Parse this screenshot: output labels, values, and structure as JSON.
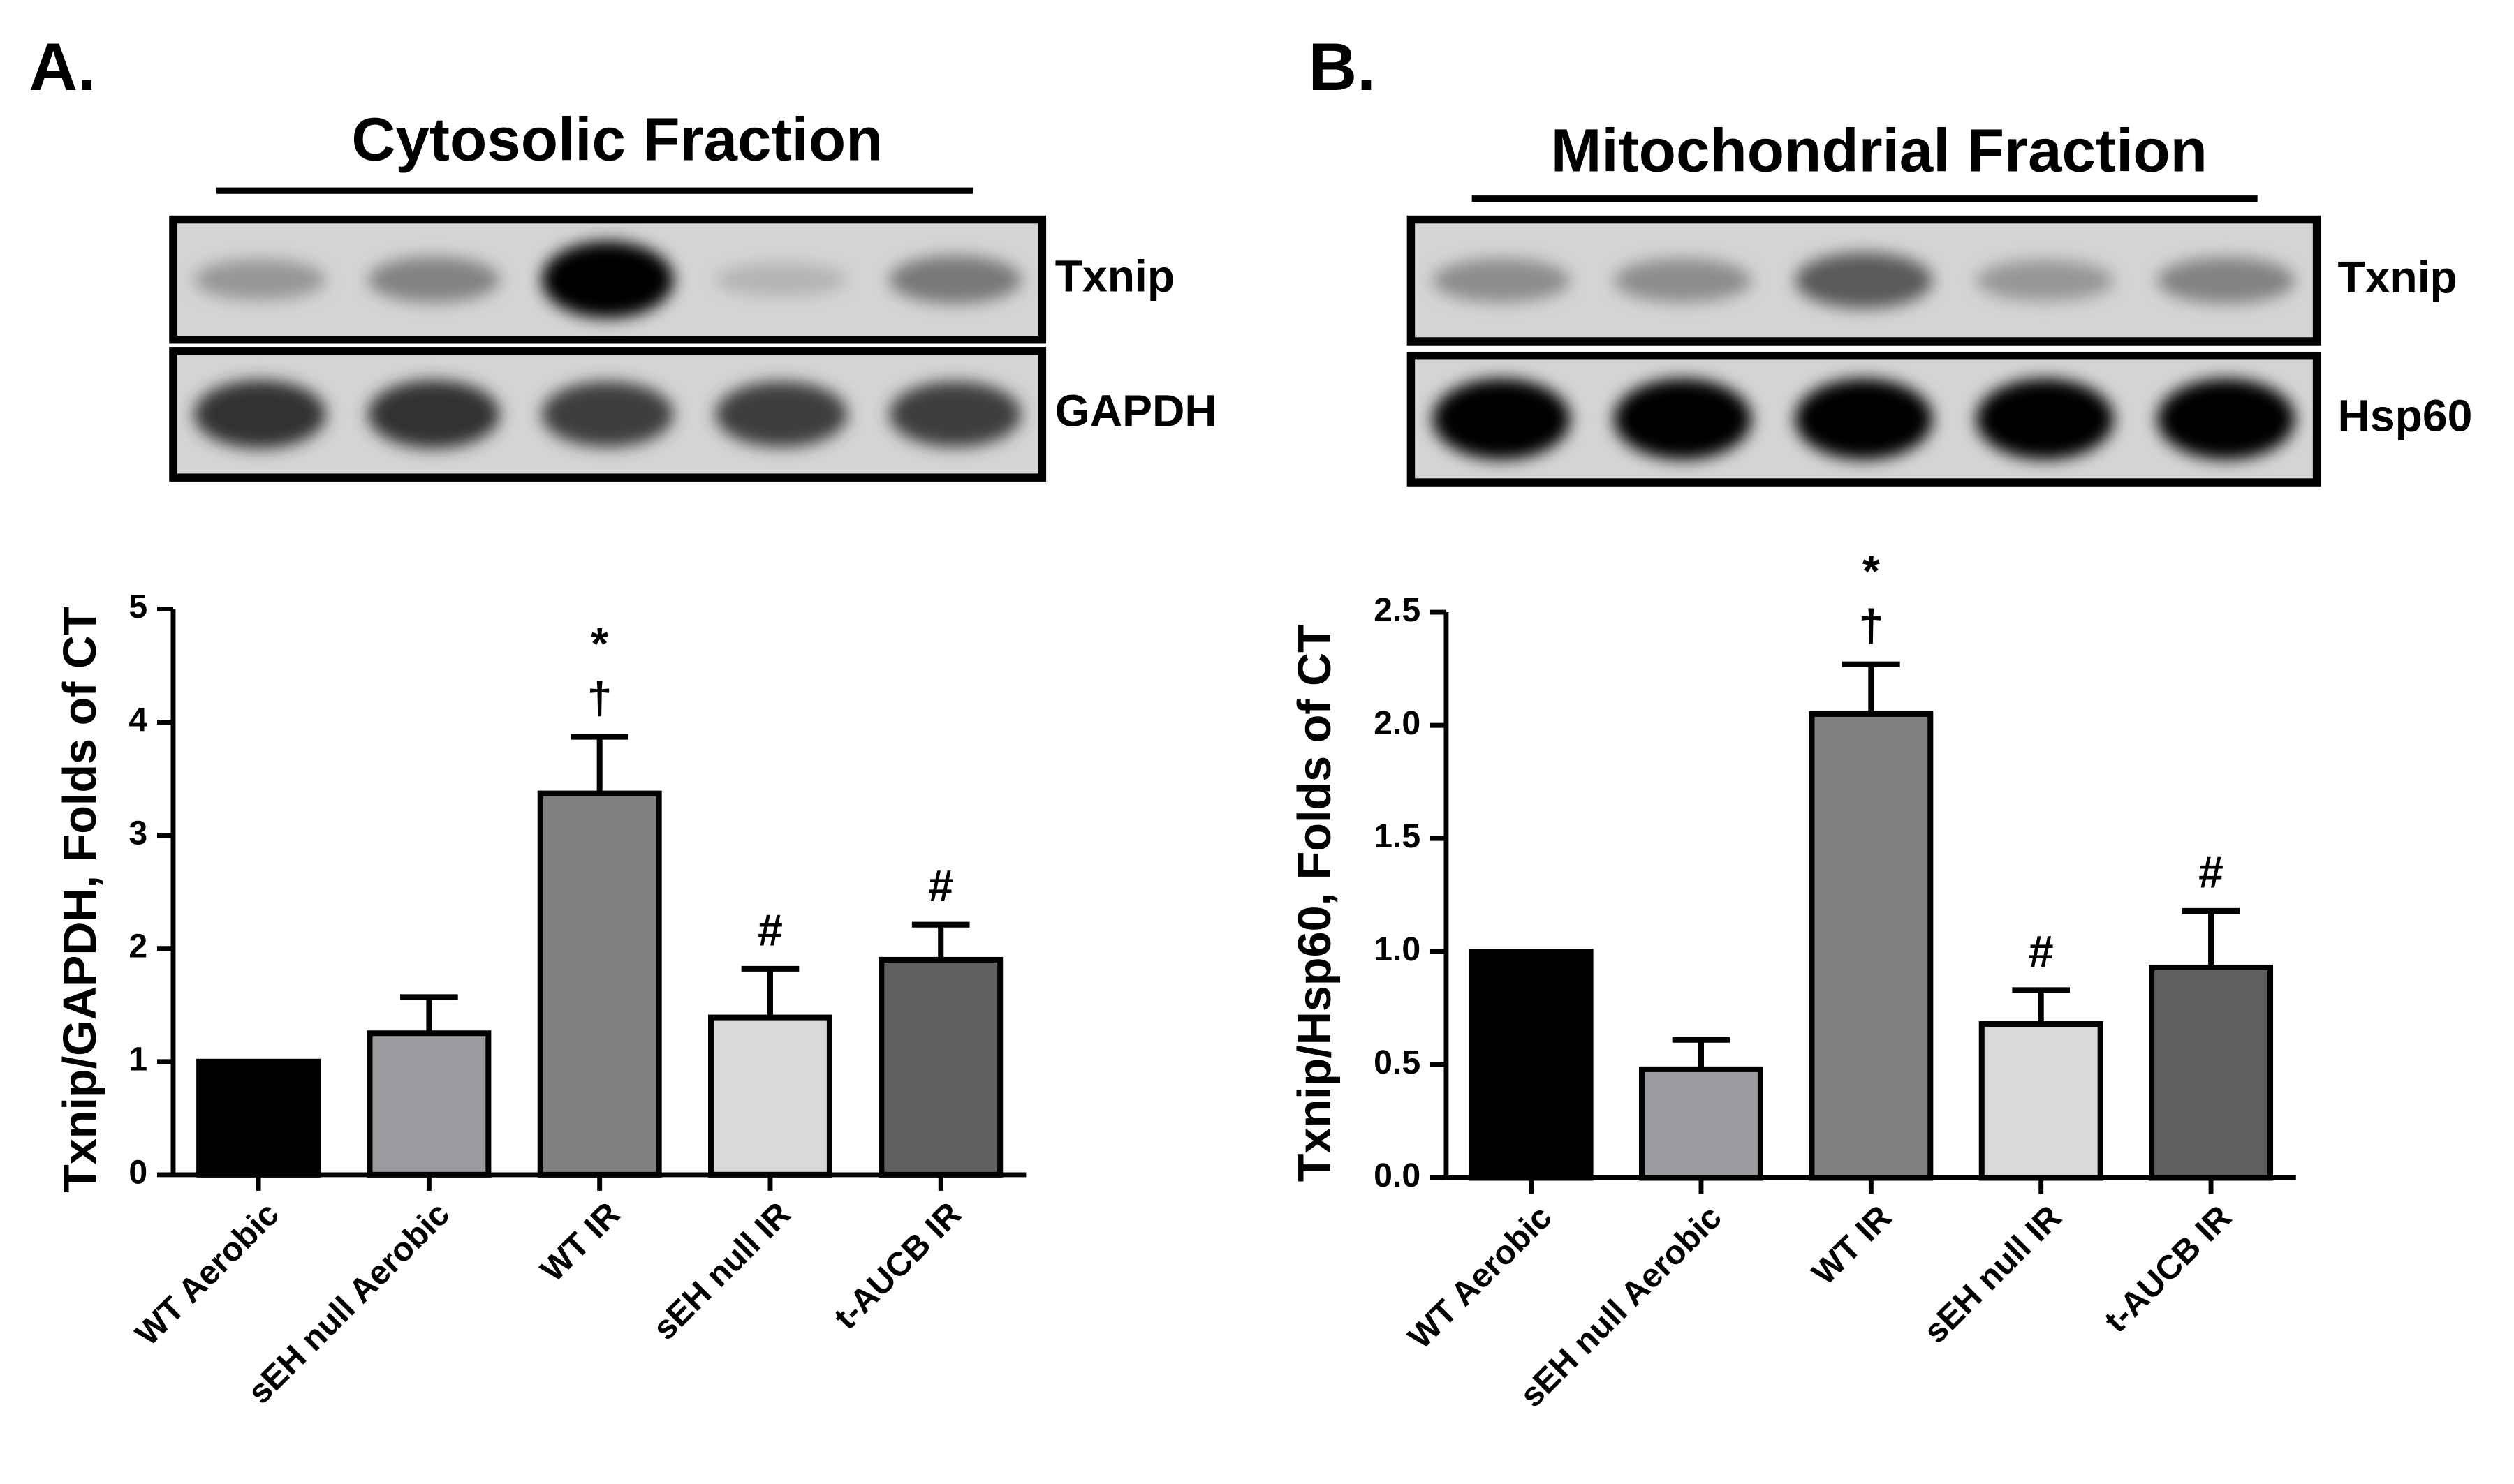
{
  "chart_data": [
    {
      "type": "bar",
      "panel": "A.",
      "header": "Cytosolic Fraction",
      "blots": [
        "Txnip",
        "GAPDH"
      ],
      "ylabel": "Txnip/GAPDH, Folds of CT",
      "categories": [
        "WT Aerobic",
        "sEH null Aerobic",
        "WT IR",
        "sEH null IR",
        "t-AUCB IR"
      ],
      "values": [
        1.0,
        1.25,
        3.37,
        1.39,
        1.9
      ],
      "errors": [
        0,
        0.32,
        0.5,
        0.43,
        0.31
      ],
      "colors": [
        "#000000",
        "#9a9ca0",
        "#808080",
        "#d9d9d9",
        "#606060"
      ],
      "annotations": [
        [],
        [],
        [
          "†",
          "*"
        ],
        [
          "#"
        ],
        [
          "#"
        ]
      ],
      "ylim": [
        0,
        5
      ],
      "yticks": [
        0,
        1,
        2,
        3,
        4,
        5
      ]
    },
    {
      "type": "bar",
      "panel": "B.",
      "header": "Mitochondrial Fraction",
      "blots": [
        "Txnip",
        "Hsp60"
      ],
      "ylabel": "Txnip/Hsp60, Folds of CT",
      "categories": [
        "WT Aerobic",
        "sEH null Aerobic",
        "WT IR",
        "sEH null IR",
        "t-AUCB IR"
      ],
      "values": [
        1.0,
        0.48,
        2.05,
        0.68,
        0.93
      ],
      "errors": [
        0,
        0.13,
        0.22,
        0.15,
        0.25
      ],
      "colors": [
        "#000000",
        "#9a9ca0",
        "#808080",
        "#d9d9d9",
        "#606060"
      ],
      "annotations": [
        [],
        [],
        [
          "†",
          "*"
        ],
        [
          "#"
        ],
        [
          "#"
        ]
      ],
      "ylim": [
        0,
        2.5
      ],
      "yticks": [
        {
          "value": 0,
          "label": "0.0"
        },
        0.5,
        {
          "value": 1,
          "label": "1.0"
        },
        1.5,
        {
          "value": 2,
          "label": "2.0"
        },
        2.5
      ]
    }
  ]
}
